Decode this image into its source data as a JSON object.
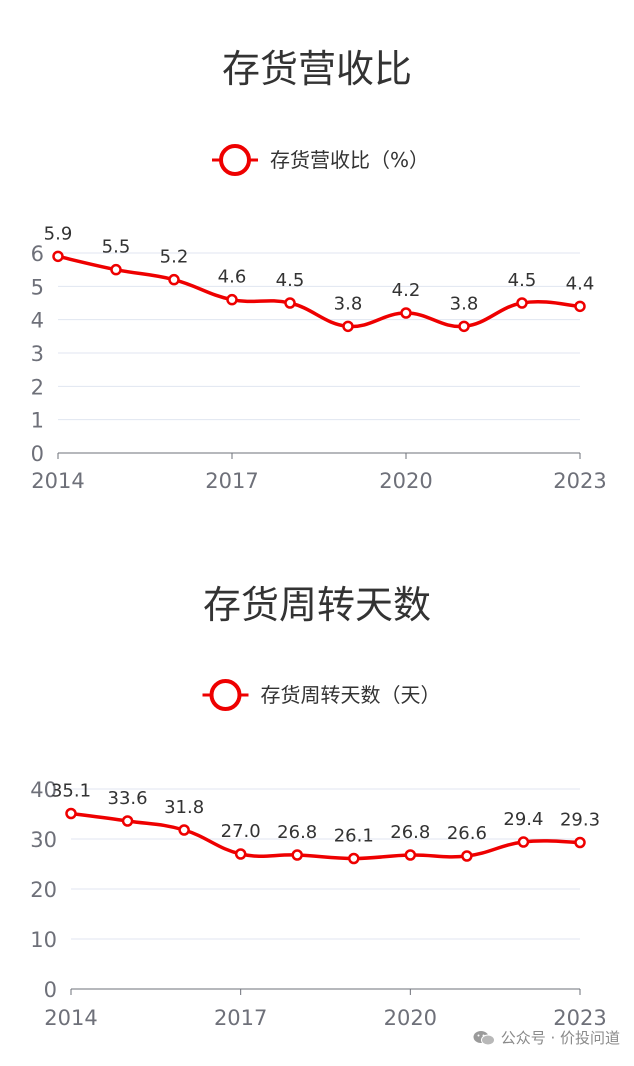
{
  "charts": [
    {
      "title": "存货营收比",
      "chart_data": {
        "type": "line",
        "title": "存货营收比",
        "x": [
          2014,
          2015,
          2016,
          2017,
          2018,
          2019,
          2020,
          2021,
          2022,
          2023
        ],
        "x_tick_labels": [
          "2014",
          "2017",
          "2020",
          "2023"
        ],
        "y_tick_labels": [
          "0",
          "1",
          "2",
          "3",
          "4",
          "5",
          "6"
        ],
        "ylim": [
          0,
          6
        ],
        "series": [
          {
            "name": "存货营收比（%）",
            "values": [
              5.9,
              5.5,
              5.2,
              4.6,
              4.5,
              3.8,
              4.2,
              3.8,
              4.5,
              4.4
            ],
            "labels": [
              "5.9",
              "5.5",
              "5.2",
              "4.6",
              "4.5",
              "3.8",
              "4.2",
              "3.8",
              "4.5",
              "4.4"
            ]
          }
        ],
        "color": "#ee0000",
        "grid": true,
        "legend_position": "top"
      }
    },
    {
      "title": "存货周转天数",
      "chart_data": {
        "type": "line",
        "title": "存货周转天数",
        "x": [
          2014,
          2015,
          2016,
          2017,
          2018,
          2019,
          2020,
          2021,
          2022,
          2023
        ],
        "x_tick_labels": [
          "2014",
          "2017",
          "2020",
          "2023"
        ],
        "y_tick_labels": [
          "0",
          "10",
          "20",
          "30",
          "40"
        ],
        "ylim": [
          0,
          40
        ],
        "series": [
          {
            "name": "存货周转天数（天）",
            "values": [
              35.1,
              33.6,
              31.8,
              27.0,
              26.8,
              26.1,
              26.8,
              26.6,
              29.4,
              29.3
            ],
            "labels": [
              "35.1",
              "33.6",
              "31.8",
              "27.0",
              "26.8",
              "26.1",
              "26.8",
              "26.6",
              "29.4",
              "29.3"
            ]
          }
        ],
        "color": "#ee0000",
        "grid": true,
        "legend_position": "top"
      }
    }
  ],
  "watermark": {
    "text": "公众号 · 价投问道",
    "icon": "wechat-icon"
  }
}
